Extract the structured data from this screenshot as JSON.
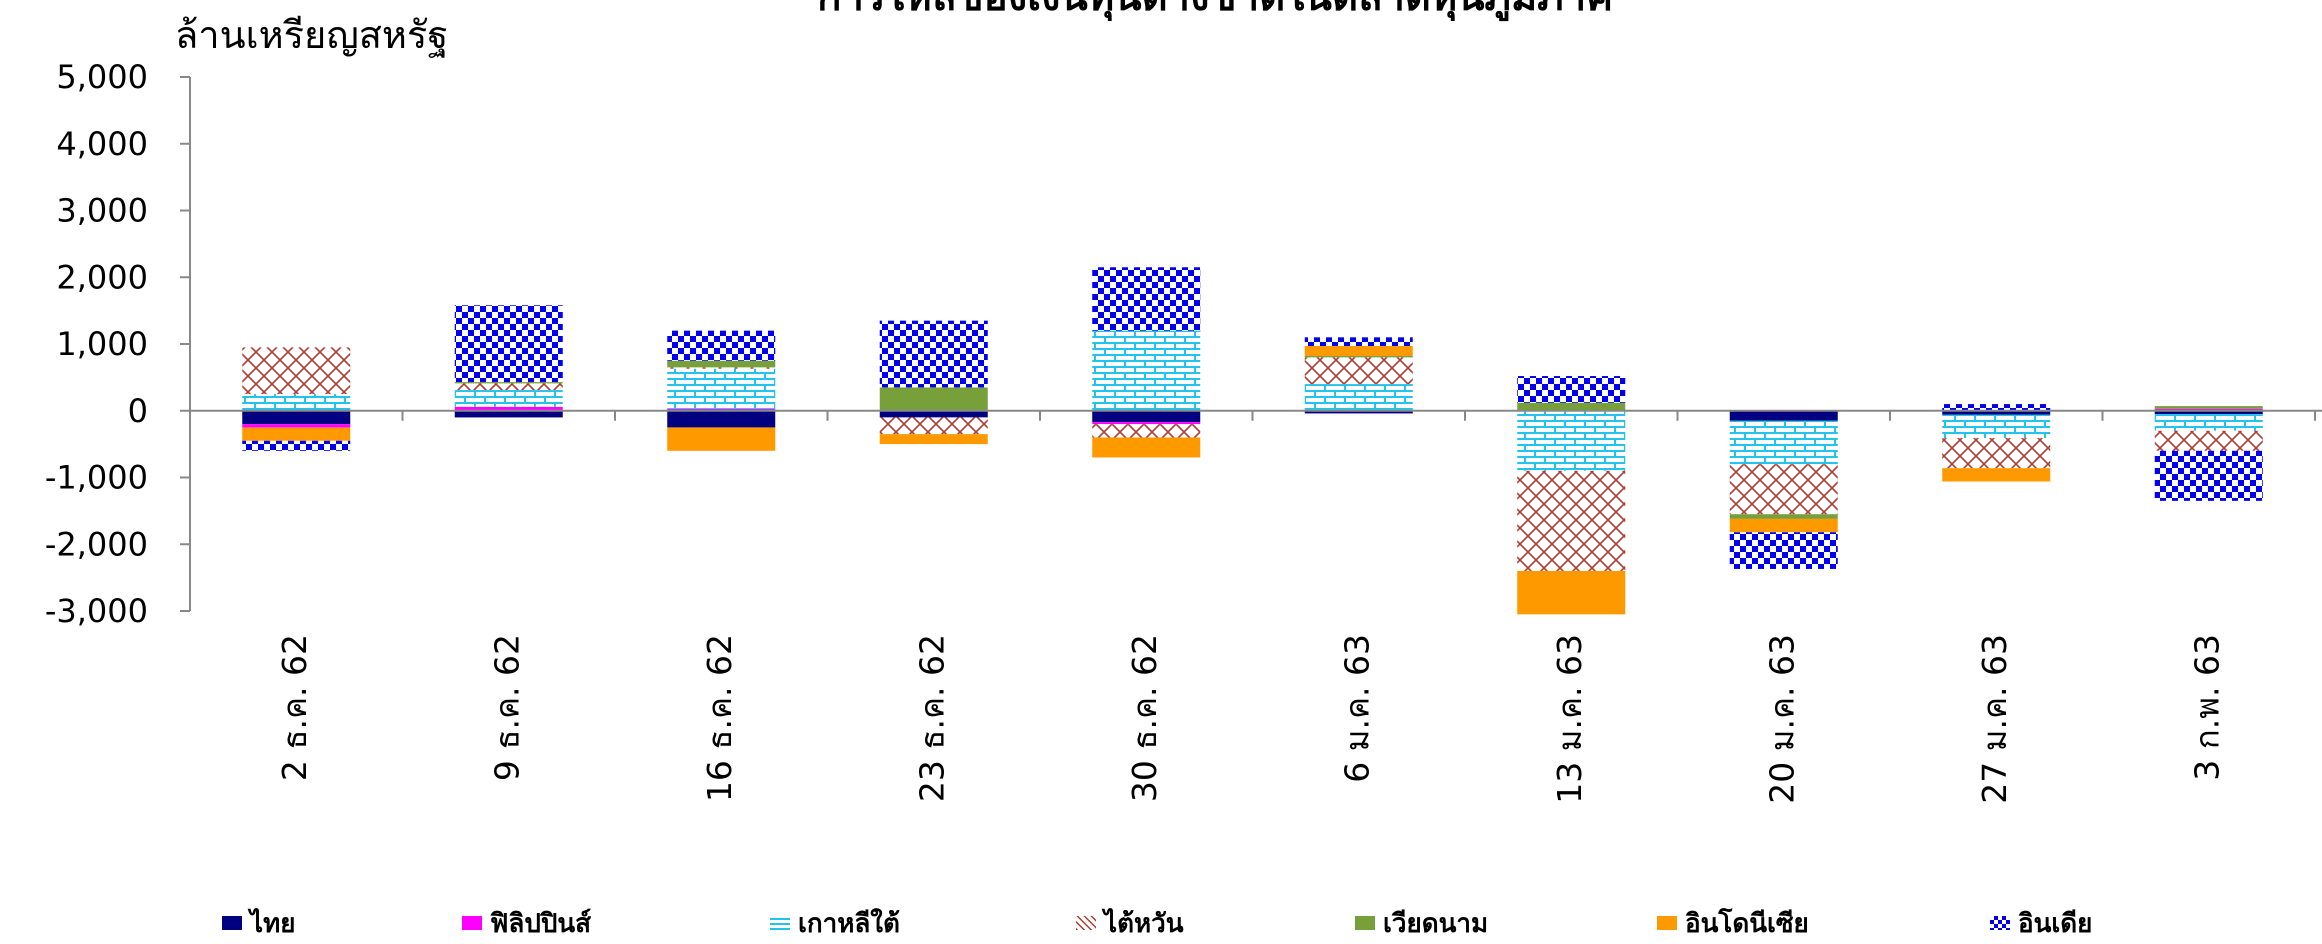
{
  "chart_data": {
    "type": "bar",
    "stacked": true,
    "title": "การไหลของเงินทุนต่างชาติในตลาดหุ้นภูมิภาค",
    "ylabel": "ล้านเหรียญสหรัฐ",
    "ylim": [
      -3000,
      5000
    ],
    "yticks": [
      "5,000",
      "4,000",
      "3,000",
      "2,000",
      "1,000",
      "0",
      "-1,000",
      "-2,000",
      "-3,000"
    ],
    "categories": [
      "2 ธ.ค. 62",
      "9 ธ.ค. 62",
      "16 ธ.ค. 62",
      "23 ธ.ค. 62",
      "30 ธ.ค. 62",
      "6 ม.ค. 63",
      "13 ม.ค. 63",
      "20 ม.ค. 63",
      "27 ม.ค. 63",
      "3 ก.พ. 63"
    ],
    "series": [
      {
        "name": "ไทย",
        "color": "#000080",
        "pattern": "solid",
        "values": [
          -200,
          -100,
          -250,
          -100,
          -170,
          -40,
          0,
          -150,
          -60,
          -50
        ]
      },
      {
        "name": "ฟิลิปปินส์",
        "color": "#ff00ff",
        "pattern": "solid",
        "values": [
          -50,
          60,
          30,
          0,
          -30,
          0,
          0,
          0,
          0,
          30
        ]
      },
      {
        "name": "เกาหลีใต้",
        "color": "#33ccee",
        "pattern": "brick",
        "values": [
          250,
          250,
          600,
          0,
          1200,
          400,
          -900,
          -650,
          -350,
          -250
        ]
      },
      {
        "name": "ไต้หวัน",
        "color": "#b03a2e",
        "pattern": "cross",
        "values": [
          700,
          100,
          20,
          -250,
          -200,
          400,
          -1500,
          -750,
          -450,
          -300
        ]
      },
      {
        "name": "เวียดนาม",
        "color": "#77a03a",
        "pattern": "solid",
        "values": [
          0,
          20,
          100,
          350,
          0,
          20,
          120,
          -70,
          0,
          40
        ]
      },
      {
        "name": "อินโดนีเซีย",
        "color": "#ff9900",
        "pattern": "solid",
        "values": [
          -200,
          0,
          -350,
          -150,
          -300,
          150,
          -650,
          -200,
          -200,
          0
        ]
      },
      {
        "name": "อินเดีย",
        "color": "#0000ee",
        "pattern": "check",
        "values": [
          -150,
          1150,
          450,
          1000,
          950,
          130,
          400,
          -550,
          100,
          -750
        ]
      }
    ],
    "grid": false,
    "legend_position": "bottom"
  }
}
